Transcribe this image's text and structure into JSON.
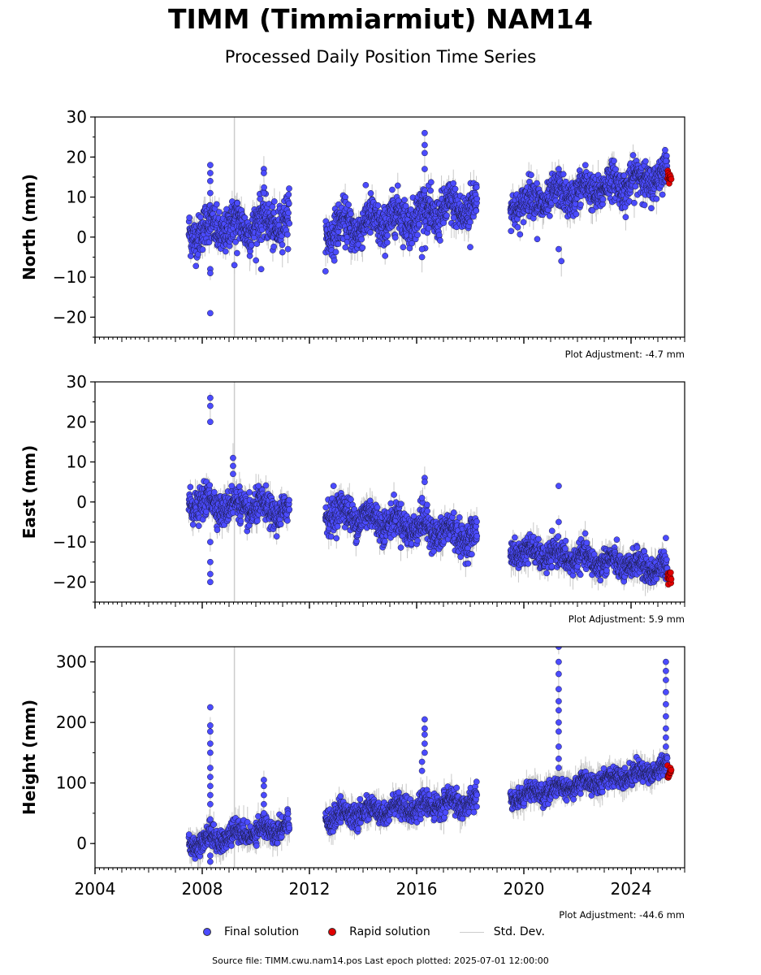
{
  "title": "TIMM (Timmiarmiut) NAM14",
  "subtitle": "Processed Daily Position Time Series",
  "legend": {
    "final": "Final solution",
    "rapid": "Rapid solution",
    "std": "Std. Dev."
  },
  "source_text": "Source file: TIMM.cwu.nam14.pos  Last epoch plotted: 2025-07-01 12:00:00",
  "colors": {
    "final": "#4b4bff",
    "rapid": "#e00000",
    "std": "#c8c8c8",
    "vline": "#cccccc"
  },
  "chart_data": [
    {
      "type": "scatter",
      "ylabel": "North (mm)",
      "xlim": [
        2004,
        2026
      ],
      "ylim": [
        -25,
        30
      ],
      "yticks": [
        -20,
        -10,
        0,
        10,
        20,
        30
      ],
      "xticks": [
        2004,
        2008,
        2012,
        2016,
        2020,
        2024
      ],
      "show_xtick_labels": false,
      "vline": 2009.2,
      "adjustment": "Plot Adjustment: -4.7 mm",
      "final_segments": [
        {
          "x0": 2007.5,
          "x1": 2011.25,
          "y0": 1.5,
          "y1": 4.0,
          "noise": 2.6
        },
        {
          "x0": 2012.6,
          "x1": 2018.25,
          "y0": 1.5,
          "y1": 8.0,
          "noise": 2.6
        },
        {
          "x0": 2019.5,
          "x1": 2025.35,
          "y0": 8.0,
          "y1": 15.5,
          "noise": 2.2
        }
      ],
      "final_outliers": [
        [
          2008.3,
          18
        ],
        [
          2008.3,
          16
        ],
        [
          2008.3,
          14
        ],
        [
          2008.3,
          11
        ],
        [
          2008.3,
          -8
        ],
        [
          2008.3,
          -9
        ],
        [
          2008.3,
          -19
        ],
        [
          2009.2,
          -7
        ],
        [
          2009.3,
          -4
        ],
        [
          2010.3,
          17
        ],
        [
          2010.3,
          16
        ],
        [
          2010.3,
          11
        ],
        [
          2010.2,
          -8
        ],
        [
          2011.2,
          -3
        ],
        [
          2016.3,
          26
        ],
        [
          2016.3,
          23
        ],
        [
          2016.3,
          21
        ],
        [
          2016.3,
          17
        ],
        [
          2016.2,
          -3
        ],
        [
          2016.2,
          -5
        ],
        [
          2018.0,
          -2.5
        ],
        [
          2021.3,
          17
        ],
        [
          2021.3,
          -3
        ],
        [
          2021.4,
          -6
        ],
        [
          2020.5,
          -0.5
        ],
        [
          2023.8,
          5
        ],
        [
          2024.5,
          8
        ],
        [
          2025.3,
          19
        ]
      ],
      "rapid": {
        "x0": 2025.36,
        "x1": 2025.5,
        "y": 15,
        "spread": 1.2
      }
    },
    {
      "type": "scatter",
      "ylabel": "East (mm)",
      "xlim": [
        2004,
        2026
      ],
      "ylim": [
        -25,
        30
      ],
      "yticks": [
        -20,
        -10,
        0,
        10,
        20,
        30
      ],
      "xticks": [
        2004,
        2008,
        2012,
        2016,
        2020,
        2024
      ],
      "show_xtick_labels": false,
      "vline": 2009.2,
      "adjustment": "Plot Adjustment: 5.9 mm",
      "final_segments": [
        {
          "x0": 2007.5,
          "x1": 2011.25,
          "y0": 0.0,
          "y1": -2.5,
          "noise": 1.9
        },
        {
          "x0": 2012.6,
          "x1": 2018.25,
          "y0": -2.0,
          "y1": -9.0,
          "noise": 2.0
        },
        {
          "x0": 2019.5,
          "x1": 2025.35,
          "y0": -12.0,
          "y1": -17.0,
          "noise": 1.6
        }
      ],
      "final_outliers": [
        [
          2008.3,
          26
        ],
        [
          2008.3,
          24
        ],
        [
          2008.3,
          20
        ],
        [
          2008.3,
          -10
        ],
        [
          2008.3,
          -15
        ],
        [
          2008.3,
          -18
        ],
        [
          2008.3,
          -20
        ],
        [
          2009.15,
          11
        ],
        [
          2009.15,
          9
        ],
        [
          2009.15,
          7
        ],
        [
          2009.1,
          4
        ],
        [
          2010.1,
          4
        ],
        [
          2012.9,
          4
        ],
        [
          2016.3,
          6
        ],
        [
          2016.3,
          5
        ],
        [
          2016.2,
          1
        ],
        [
          2021.3,
          4
        ],
        [
          2021.3,
          -5
        ],
        [
          2025.3,
          -9
        ]
      ],
      "rapid": {
        "x0": 2025.36,
        "x1": 2025.5,
        "y": -19,
        "spread": 1.0
      }
    },
    {
      "type": "scatter",
      "ylabel": "Height (mm)",
      "xlim": [
        2004,
        2026
      ],
      "ylim": [
        -40,
        325
      ],
      "yticks": [
        0,
        100,
        200,
        300
      ],
      "xticks": [
        2004,
        2008,
        2012,
        2016,
        2020,
        2024
      ],
      "show_xtick_labels": true,
      "vline": 2009.2,
      "adjustment": "Plot Adjustment: -44.6 mm",
      "final_segments": [
        {
          "x0": 2007.5,
          "x1": 2011.25,
          "y0": 0,
          "y1": 30,
          "noise": 9
        },
        {
          "x0": 2012.6,
          "x1": 2018.25,
          "y0": 45,
          "y1": 70,
          "noise": 9
        },
        {
          "x0": 2019.5,
          "x1": 2025.35,
          "y0": 75,
          "y1": 125,
          "noise": 8
        }
      ],
      "final_outliers": [
        [
          2008.3,
          225
        ],
        [
          2008.3,
          195
        ],
        [
          2008.3,
          185
        ],
        [
          2008.3,
          165
        ],
        [
          2008.3,
          150
        ],
        [
          2008.3,
          125
        ],
        [
          2008.3,
          110
        ],
        [
          2008.3,
          95
        ],
        [
          2008.3,
          80
        ],
        [
          2008.3,
          65
        ],
        [
          2008.3,
          40
        ],
        [
          2008.3,
          -20
        ],
        [
          2008.3,
          -30
        ],
        [
          2010.3,
          105
        ],
        [
          2010.3,
          95
        ],
        [
          2010.3,
          80
        ],
        [
          2010.3,
          65
        ],
        [
          2010.3,
          50
        ],
        [
          2016.3,
          205
        ],
        [
          2016.3,
          190
        ],
        [
          2016.3,
          180
        ],
        [
          2016.3,
          165
        ],
        [
          2016.3,
          150
        ],
        [
          2016.2,
          135
        ],
        [
          2016.2,
          120
        ],
        [
          2021.3,
          325
        ],
        [
          2021.3,
          300
        ],
        [
          2021.3,
          280
        ],
        [
          2021.3,
          255
        ],
        [
          2021.3,
          235
        ],
        [
          2021.3,
          220
        ],
        [
          2021.3,
          200
        ],
        [
          2021.3,
          185
        ],
        [
          2021.3,
          160
        ],
        [
          2021.3,
          140
        ],
        [
          2021.3,
          125
        ],
        [
          2025.3,
          300
        ],
        [
          2025.3,
          285
        ],
        [
          2025.3,
          270
        ],
        [
          2025.3,
          250
        ],
        [
          2025.3,
          230
        ],
        [
          2025.3,
          210
        ],
        [
          2025.3,
          190
        ],
        [
          2025.3,
          175
        ],
        [
          2025.3,
          160
        ]
      ],
      "rapid": {
        "x0": 2025.36,
        "x1": 2025.5,
        "y": 118,
        "spread": 5
      }
    }
  ]
}
